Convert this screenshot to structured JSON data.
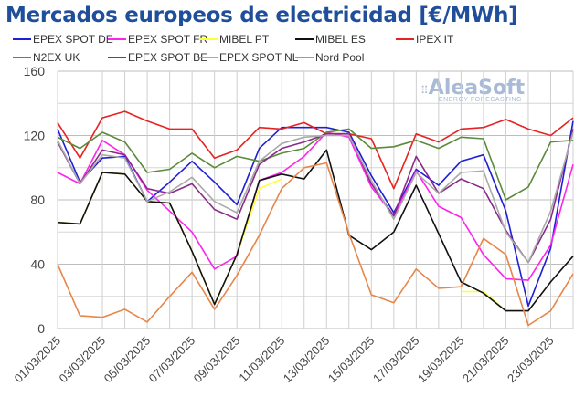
{
  "chart_data": {
    "type": "line",
    "title": "Mercados europeos de electricidad [€/MWh]",
    "xlabel": "",
    "ylabel": "",
    "ylim": [
      0,
      160
    ],
    "yticks": [
      "0",
      "40",
      "80",
      "120",
      "160"
    ],
    "grid": true,
    "legend_position": "top",
    "x": [
      "01/03/2025",
      "02/03/2025",
      "03/03/2025",
      "04/03/2025",
      "05/03/2025",
      "06/03/2025",
      "07/03/2025",
      "08/03/2025",
      "09/03/2025",
      "10/03/2025",
      "11/03/2025",
      "12/03/2025",
      "13/03/2025",
      "14/03/2025",
      "15/03/2025",
      "16/03/2025",
      "17/03/2025",
      "18/03/2025",
      "19/03/2025",
      "20/03/2025",
      "21/03/2025",
      "22/03/2025",
      "23/03/2025",
      "24/03/2025"
    ],
    "xtick_labels": [
      "01/03/2025",
      "03/03/2025",
      "05/03/2025",
      "07/03/2025",
      "09/03/2025",
      "11/03/2025",
      "13/03/2025",
      "15/03/2025",
      "17/03/2025",
      "19/03/2025",
      "21/03/2025",
      "23/03/2025"
    ],
    "series": [
      {
        "name": "EPEX SPOT DE",
        "color": "#1f1fd6",
        "values": [
          124,
          91,
          106,
          107,
          79,
          91,
          104,
          91,
          77,
          112,
          125,
          125,
          125,
          122,
          95,
          72,
          99,
          89,
          104,
          108,
          73,
          14,
          50,
          129
        ]
      },
      {
        "name": "EPEX SPOT FR",
        "color": "#ff22ee",
        "values": [
          97,
          90,
          117,
          108,
          86,
          73,
          60,
          37,
          45,
          92,
          97,
          107,
          122,
          119,
          88,
          70,
          98,
          76,
          69,
          46,
          31,
          30,
          52,
          102
        ]
      },
      {
        "name": "MIBEL PT",
        "color": "#ffff33",
        "values": [
          66,
          65,
          97,
          96,
          79,
          78,
          48,
          15,
          46,
          87,
          93,
          null,
          null,
          null,
          null,
          null,
          83,
          null,
          23,
          23,
          11,
          11,
          null,
          45
        ]
      },
      {
        "name": "MIBEL ES",
        "color": "#111111",
        "values": [
          66,
          65,
          97,
          96,
          79,
          78,
          48,
          15,
          46,
          92,
          96,
          93,
          111,
          58,
          49,
          60,
          89,
          59,
          29,
          22,
          11,
          11,
          29,
          45
        ]
      },
      {
        "name": "IPEX IT",
        "color": "#e62222",
        "values": [
          128,
          106,
          131,
          135,
          129,
          124,
          124,
          106,
          111,
          125,
          124,
          128,
          121,
          121,
          118,
          87,
          121,
          116,
          124,
          125,
          130,
          124,
          120,
          131
        ]
      },
      {
        "name": "N2EX UK",
        "color": "#5a8a3a",
        "values": [
          119,
          112,
          122,
          116,
          97,
          99,
          109,
          100,
          107,
          104,
          109,
          112,
          122,
          124,
          112,
          113,
          117,
          112,
          119,
          118,
          80,
          88,
          116,
          117
        ]
      },
      {
        "name": "EPEX SPOT BE",
        "color": "#8a2a8a",
        "values": [
          116,
          90,
          111,
          108,
          87,
          84,
          90,
          74,
          68,
          102,
          112,
          116,
          121,
          121,
          90,
          70,
          107,
          84,
          93,
          87,
          61,
          41,
          68,
          124
        ]
      },
      {
        "name": "EPEX SPOT NL",
        "color": "#aaaaaa",
        "values": [
          117,
          90,
          108,
          106,
          79,
          85,
          94,
          79,
          72,
          104,
          115,
          119,
          120,
          120,
          92,
          68,
          97,
          84,
          97,
          98,
          60,
          41,
          73,
          122
        ]
      },
      {
        "name": "Nord Pool",
        "color": "#e8864a",
        "values": [
          40,
          8,
          7,
          12,
          4,
          20,
          35,
          12,
          33,
          58,
          87,
          100,
          103,
          59,
          21,
          16,
          37,
          25,
          26,
          56,
          46,
          2,
          11,
          34
        ]
      }
    ]
  },
  "logo": {
    "name": "AleaSoft",
    "tagline": "ENERGY FORECASTING"
  }
}
